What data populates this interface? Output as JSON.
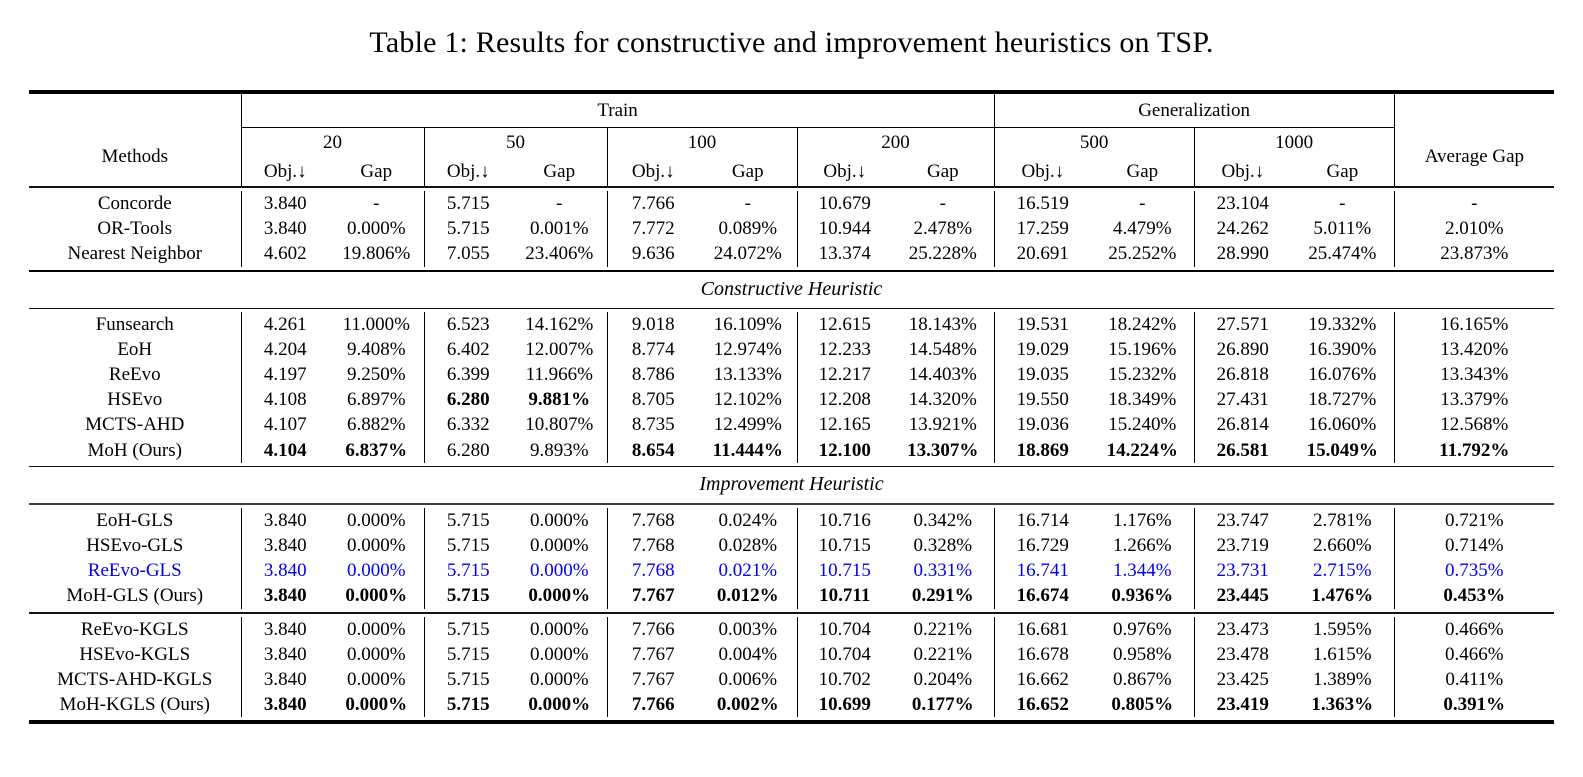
{
  "title": "Table 1: Results for constructive and improvement heuristics on TSP.",
  "colors": {
    "highlight_blue": "#0000EE",
    "text": "#000000",
    "background": "#ffffff"
  },
  "table": {
    "header": {
      "methods_label": "Methods",
      "train_label": "Train",
      "generalization_label": "Generalization",
      "avg_gap_label": "Average Gap",
      "sizes": [
        "20",
        "50",
        "100",
        "200",
        "500",
        "1000"
      ],
      "obj_label": "Obj.↓",
      "gap_label": "Gap"
    },
    "sections": [
      {
        "name": "baselines",
        "title": null,
        "rows": [
          {
            "method": "Concorde",
            "values": [
              "3.840",
              "-",
              "5.715",
              "-",
              "7.766",
              "-",
              "10.679",
              "-",
              "16.519",
              "-",
              "23.104",
              "-",
              "-"
            ],
            "bold": []
          },
          {
            "method": "OR-Tools",
            "values": [
              "3.840",
              "0.000%",
              "5.715",
              "0.001%",
              "7.772",
              "0.089%",
              "10.944",
              "2.478%",
              "17.259",
              "4.479%",
              "24.262",
              "5.011%",
              "2.010%"
            ],
            "bold": []
          },
          {
            "method": "Nearest Neighbor",
            "values": [
              "4.602",
              "19.806%",
              "7.055",
              "23.406%",
              "9.636",
              "24.072%",
              "13.374",
              "25.228%",
              "20.691",
              "25.252%",
              "28.990",
              "25.474%",
              "23.873%"
            ],
            "bold": []
          }
        ]
      },
      {
        "name": "constructive",
        "title": "Constructive Heuristic",
        "rows": [
          {
            "method": "Funsearch",
            "values": [
              "4.261",
              "11.000%",
              "6.523",
              "14.162%",
              "9.018",
              "16.109%",
              "12.615",
              "18.143%",
              "19.531",
              "18.242%",
              "27.571",
              "19.332%",
              "16.165%"
            ],
            "bold": []
          },
          {
            "method": "EoH",
            "values": [
              "4.204",
              "9.408%",
              "6.402",
              "12.007%",
              "8.774",
              "12.974%",
              "12.233",
              "14.548%",
              "19.029",
              "15.196%",
              "26.890",
              "16.390%",
              "13.420%"
            ],
            "bold": []
          },
          {
            "method": "ReEvo",
            "values": [
              "4.197",
              "9.250%",
              "6.399",
              "11.966%",
              "8.786",
              "13.133%",
              "12.217",
              "14.403%",
              "19.035",
              "15.232%",
              "26.818",
              "16.076%",
              "13.343%"
            ],
            "bold": []
          },
          {
            "method": "HSEvo",
            "values": [
              "4.108",
              "6.897%",
              "6.280",
              "9.881%",
              "8.705",
              "12.102%",
              "12.208",
              "14.320%",
              "19.550",
              "18.349%",
              "27.431",
              "18.727%",
              "13.379%"
            ],
            "bold": [
              2,
              3
            ]
          },
          {
            "method": "MCTS-AHD",
            "values": [
              "4.107",
              "6.882%",
              "6.332",
              "10.807%",
              "8.735",
              "12.499%",
              "12.165",
              "13.921%",
              "19.036",
              "15.240%",
              "26.814",
              "16.060%",
              "12.568%"
            ],
            "bold": []
          },
          {
            "method": "MoH (Ours)",
            "values": [
              "4.104",
              "6.837%",
              "6.280",
              "9.893%",
              "8.654",
              "11.444%",
              "12.100",
              "13.307%",
              "18.869",
              "14.224%",
              "26.581",
              "15.049%",
              "11.792%"
            ],
            "bold": [
              0,
              1,
              4,
              5,
              6,
              7,
              8,
              9,
              10,
              11,
              12
            ]
          }
        ]
      },
      {
        "name": "improvement-gls",
        "title": "Improvement Heuristic",
        "rows": [
          {
            "method": "EoH-GLS",
            "values": [
              "3.840",
              "0.000%",
              "5.715",
              "0.000%",
              "7.768",
              "0.024%",
              "10.716",
              "0.342%",
              "16.714",
              "1.176%",
              "23.747",
              "2.781%",
              "0.721%"
            ],
            "bold": []
          },
          {
            "method": "HSEvo-GLS",
            "values": [
              "3.840",
              "0.000%",
              "5.715",
              "0.000%",
              "7.768",
              "0.028%",
              "10.715",
              "0.328%",
              "16.729",
              "1.266%",
              "23.719",
              "2.660%",
              "0.714%"
            ],
            "bold": []
          },
          {
            "method": "ReEvo-GLS",
            "values": [
              "3.840",
              "0.000%",
              "5.715",
              "0.000%",
              "7.768",
              "0.021%",
              "10.715",
              "0.331%",
              "16.741",
              "1.344%",
              "23.731",
              "2.715%",
              "0.735%"
            ],
            "bold": [],
            "color": "blue"
          },
          {
            "method": "MoH-GLS (Ours)",
            "values": [
              "3.840",
              "0.000%",
              "5.715",
              "0.000%",
              "7.767",
              "0.012%",
              "10.711",
              "0.291%",
              "16.674",
              "0.936%",
              "23.445",
              "1.476%",
              "0.453%"
            ],
            "bold": "all"
          }
        ]
      },
      {
        "name": "improvement-kgls",
        "title": null,
        "rows": [
          {
            "method": "ReEvo-KGLS",
            "values": [
              "3.840",
              "0.000%",
              "5.715",
              "0.000%",
              "7.766",
              "0.003%",
              "10.704",
              "0.221%",
              "16.681",
              "0.976%",
              "23.473",
              "1.595%",
              "0.466%"
            ],
            "bold": []
          },
          {
            "method": "HSEvo-KGLS",
            "values": [
              "3.840",
              "0.000%",
              "5.715",
              "0.000%",
              "7.767",
              "0.004%",
              "10.704",
              "0.221%",
              "16.678",
              "0.958%",
              "23.478",
              "1.615%",
              "0.466%"
            ],
            "bold": []
          },
          {
            "method": "MCTS-AHD-KGLS",
            "values": [
              "3.840",
              "0.000%",
              "5.715",
              "0.000%",
              "7.767",
              "0.006%",
              "10.702",
              "0.204%",
              "16.662",
              "0.867%",
              "23.425",
              "1.389%",
              "0.411%"
            ],
            "bold": []
          },
          {
            "method": "MoH-KGLS (Ours)",
            "values": [
              "3.840",
              "0.000%",
              "5.715",
              "0.000%",
              "7.766",
              "0.002%",
              "10.699",
              "0.177%",
              "16.652",
              "0.805%",
              "23.419",
              "1.363%",
              "0.391%"
            ],
            "bold": "all"
          }
        ]
      }
    ]
  }
}
